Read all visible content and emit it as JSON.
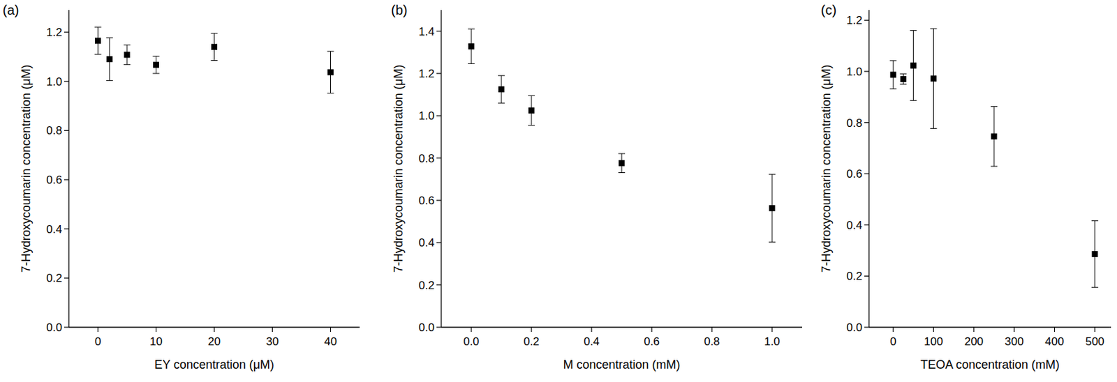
{
  "chart_data": [
    {
      "type": "scatter",
      "title": "(a)",
      "x_label": "EY concentration (μM)",
      "y_label": "7-Hydroxycoumarin concentration (μM)",
      "x": [
        0,
        2,
        5,
        10,
        20,
        40
      ],
      "values": [
        1.165,
        1.09,
        1.108,
        1.067,
        1.14,
        1.037
      ],
      "errors": [
        0.055,
        0.087,
        0.04,
        0.035,
        0.055,
        0.085
      ],
      "color": "#000000",
      "marker": "square",
      "xlim": [
        -5,
        45
      ],
      "xticks": [
        0,
        10,
        20,
        30,
        40
      ],
      "ylim": [
        0,
        1.29
      ],
      "yticks": [
        {
          "value": 0,
          "label": "0.0"
        },
        {
          "value": 0.2,
          "label": "0.2"
        },
        {
          "value": 0.4,
          "label": "0.4"
        },
        {
          "value": 0.6,
          "label": "0.6"
        },
        {
          "value": 0.8,
          "label": "0.8"
        },
        {
          "value": 1.0,
          "label": "1.0"
        },
        {
          "value": 1.2,
          "label": "1.2"
        }
      ]
    },
    {
      "type": "scatter",
      "title": "(b)",
      "x_label": "M concentration (mM)",
      "y_label": "7-Hydroxycoumarin concentration (μM)",
      "x": [
        0,
        0.1,
        0.2,
        0.5,
        1.0
      ],
      "values": [
        1.328,
        1.125,
        1.025,
        0.776,
        0.563
      ],
      "errors": [
        0.082,
        0.065,
        0.07,
        0.045,
        0.16
      ],
      "color": "#000000",
      "marker": "square",
      "xlim": [
        -0.1,
        1.1
      ],
      "xticks": [
        {
          "value": 0,
          "label": "0.0"
        },
        {
          "value": 0.2,
          "label": "0.2"
        },
        {
          "value": 0.4,
          "label": "0.4"
        },
        {
          "value": 0.6,
          "label": "0.6"
        },
        {
          "value": 0.8,
          "label": "0.8"
        },
        {
          "value": 1.0,
          "label": "1.0"
        }
      ],
      "ylim": [
        0,
        1.5
      ],
      "yticks": [
        {
          "value": 0,
          "label": "0.0"
        },
        {
          "value": 0.2,
          "label": "0.2"
        },
        {
          "value": 0.4,
          "label": "0.4"
        },
        {
          "value": 0.6,
          "label": "0.6"
        },
        {
          "value": 0.8,
          "label": "0.8"
        },
        {
          "value": 1.0,
          "label": "1.0"
        },
        {
          "value": 1.2,
          "label": "1.2"
        },
        {
          "value": 1.4,
          "label": "1.4"
        }
      ]
    },
    {
      "type": "scatter",
      "title": "(c)",
      "x_label": "TEOA concentration (mM)",
      "y_label": "7-Hydroxycoumarin concentration (μM)",
      "x": [
        0,
        25,
        50,
        100,
        250,
        500
      ],
      "values": [
        0.987,
        0.97,
        1.023,
        0.972,
        0.746,
        0.286
      ],
      "errors": [
        0.055,
        0.02,
        0.137,
        0.195,
        0.117,
        0.13
      ],
      "color": "#000000",
      "marker": "square",
      "xlim": [
        -60,
        540
      ],
      "xticks": [
        0,
        100,
        200,
        300,
        400,
        500
      ],
      "ylim": [
        0,
        1.24
      ],
      "yticks": [
        {
          "value": 0,
          "label": "0.0"
        },
        {
          "value": 0.2,
          "label": "0.2"
        },
        {
          "value": 0.4,
          "label": "0.4"
        },
        {
          "value": 0.6,
          "label": "0.6"
        },
        {
          "value": 0.8,
          "label": "0.8"
        },
        {
          "value": 1.0,
          "label": "1.0"
        },
        {
          "value": 1.2,
          "label": "1.2"
        }
      ]
    }
  ]
}
